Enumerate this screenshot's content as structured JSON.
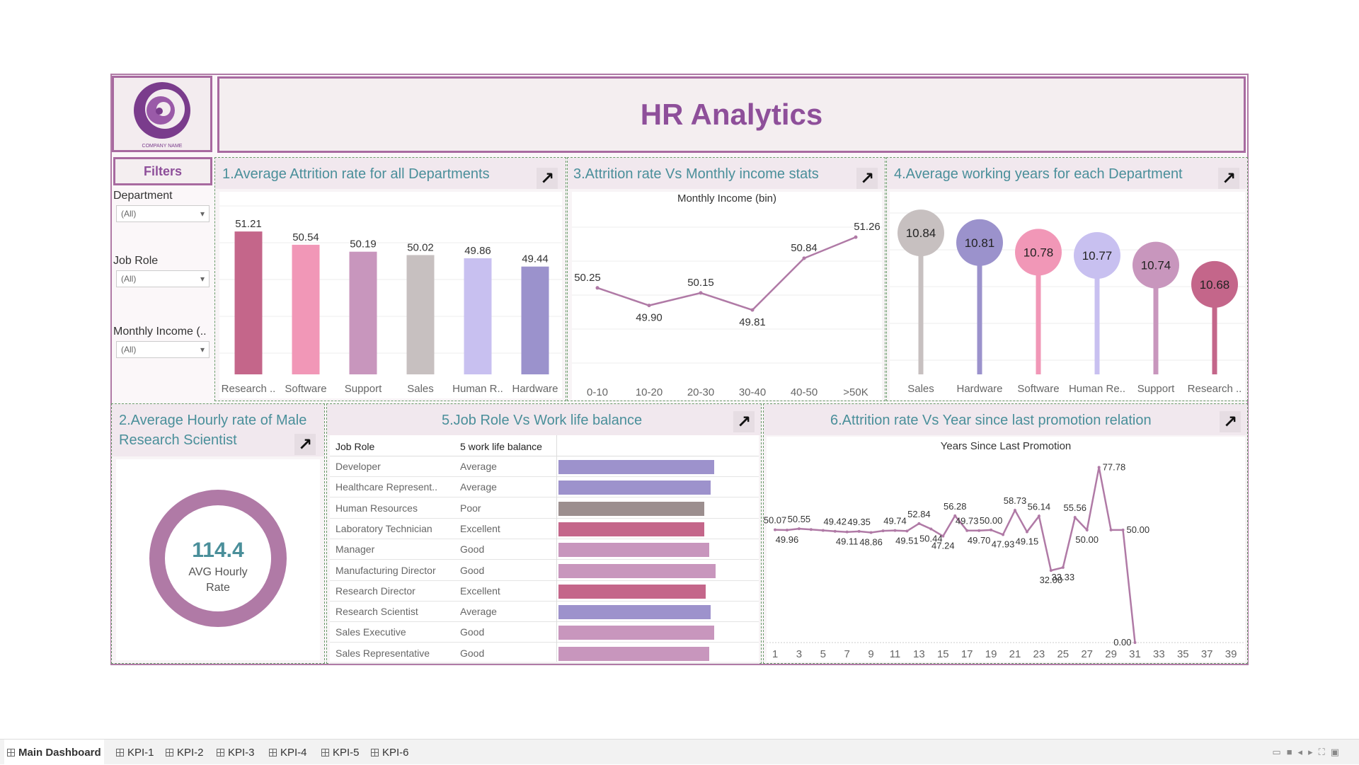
{
  "dashboard": {
    "title": "HR Analytics",
    "logo_text": "COMPANY NAME",
    "arrow_icon": "expand-arrow-icon"
  },
  "filters": {
    "title": "Filters",
    "items": [
      {
        "label": "Department",
        "value": "(All)"
      },
      {
        "label": "Job Role",
        "value": "(All)"
      },
      {
        "label": "Monthly Income (..",
        "value": "(All)"
      }
    ]
  },
  "panel1": {
    "title": "1.Average Attrition rate for all Departments",
    "chart_data": {
      "type": "bar",
      "categories": [
        "Research ..",
        "Software",
        "Support",
        "Sales",
        "Human R..",
        "Hardware"
      ],
      "values": [
        51.21,
        50.54,
        50.19,
        50.02,
        49.86,
        49.44
      ],
      "labels": [
        "51.21",
        "50.54",
        "50.19",
        "50.02",
        "49.86",
        "49.44"
      ],
      "colors": [
        "#c4668a",
        "#f197b7",
        "#c896bd",
        "#c7c0c0",
        "#c8c0f0",
        "#9b92cc"
      ],
      "ylim": [
        44,
        52
      ]
    }
  },
  "panel2": {
    "title_line1": "2.Average Hourly rate of Male",
    "title_line2": "Research Scientist",
    "value": "114.4",
    "caption_line1": "AVG Hourly",
    "caption_line2": "Rate",
    "ring_color": "#b07aa6"
  },
  "panel3": {
    "title": "3.Attrition rate Vs Monthly income stats",
    "chart_data": {
      "type": "line",
      "title": "Monthly Income (bin)",
      "categories": [
        "0-10",
        "10-20",
        "20-30",
        "30-40",
        "40-50",
        ">50K"
      ],
      "values": [
        50.25,
        49.9,
        50.15,
        49.81,
        50.84,
        51.26
      ],
      "labels": [
        "50.25",
        "49.90",
        "50.15",
        "49.81",
        "50.84",
        "51.26"
      ],
      "ylim": [
        48.5,
        51.6
      ],
      "color": "#b07aa6"
    }
  },
  "panel4": {
    "title": "4.Average working years for each Department",
    "chart_data": {
      "type": "lollipop",
      "categories": [
        "Sales",
        "Hardware",
        "Software",
        "Human Re..",
        "Support",
        "Research .."
      ],
      "values": [
        10.84,
        10.81,
        10.78,
        10.77,
        10.74,
        10.68
      ],
      "labels": [
        "10.84",
        "10.81",
        "10.78",
        "10.77",
        "10.74",
        "10.68"
      ],
      "colors": [
        "#c7c0c0",
        "#9b92cc",
        "#f197b7",
        "#c8c0f0",
        "#c896bd",
        "#c4668a"
      ],
      "ylim": [
        10.4,
        10.88
      ]
    }
  },
  "panel5": {
    "title": "5.Job Role Vs Work life balance",
    "col1": "Job Role",
    "col2": "5 work life balance",
    "rows": [
      {
        "role": "Developer",
        "balance": "Average",
        "value": 0.94,
        "color": "#9d92cc"
      },
      {
        "role": "Healthcare Represent..",
        "balance": "Average",
        "value": 0.92,
        "color": "#9d92cc"
      },
      {
        "role": "Human Resources",
        "balance": "Poor",
        "value": 0.88,
        "color": "#9c8f8f"
      },
      {
        "role": "Laboratory Technician",
        "balance": "Excellent",
        "value": 0.88,
        "color": "#c4668a"
      },
      {
        "role": "Manager",
        "balance": "Good",
        "value": 0.91,
        "color": "#c896bd"
      },
      {
        "role": "Manufacturing Director",
        "balance": "Good",
        "value": 0.95,
        "color": "#c896bd"
      },
      {
        "role": "Research Director",
        "balance": "Excellent",
        "value": 0.89,
        "color": "#c4668a"
      },
      {
        "role": "Research Scientist",
        "balance": "Average",
        "value": 0.92,
        "color": "#9d92cc"
      },
      {
        "role": "Sales Executive",
        "balance": "Good",
        "value": 0.94,
        "color": "#c896bd"
      },
      {
        "role": "Sales Representative",
        "balance": "Good",
        "value": 0.91,
        "color": "#c896bd"
      }
    ]
  },
  "panel6": {
    "title": "6.Attrition rate Vs Year since last promotion relation",
    "chart_data": {
      "type": "line",
      "title": "Years Since Last Promotion",
      "x": [
        1,
        2,
        3,
        4,
        5,
        6,
        7,
        8,
        9,
        10,
        11,
        12,
        13,
        14,
        15,
        16,
        17,
        18,
        19,
        20,
        21,
        22,
        23,
        24,
        25,
        26,
        27,
        28,
        29,
        30,
        31,
        32,
        33,
        34,
        35,
        36,
        37,
        38,
        39,
        40
      ],
      "values": [
        50.07,
        49.96,
        50.55,
        50.2,
        49.8,
        49.42,
        49.11,
        49.35,
        48.86,
        49.6,
        49.74,
        49.51,
        52.84,
        50.44,
        47.24,
        56.28,
        49.73,
        49.7,
        50.0,
        47.93,
        58.73,
        49.15,
        56.14,
        32.0,
        33.33,
        55.56,
        50.0,
        77.78,
        50.0,
        50.0,
        0.0,
        0,
        0,
        0,
        0,
        0,
        0,
        0,
        0,
        0
      ],
      "labels": [
        {
          "i": 0,
          "t": "50.07",
          "pos": "above"
        },
        {
          "i": 1,
          "t": "49.96",
          "pos": "below"
        },
        {
          "i": 2,
          "t": "50.55",
          "pos": "above"
        },
        {
          "i": 5,
          "t": "49.42",
          "pos": "above"
        },
        {
          "i": 6,
          "t": "49.11",
          "pos": "below"
        },
        {
          "i": 7,
          "t": "49.35",
          "pos": "above"
        },
        {
          "i": 8,
          "t": "48.86",
          "pos": "below"
        },
        {
          "i": 10,
          "t": "49.74",
          "pos": "above"
        },
        {
          "i": 11,
          "t": "49.51",
          "pos": "below"
        },
        {
          "i": 12,
          "t": "52.84",
          "pos": "above"
        },
        {
          "i": 13,
          "t": "50.44",
          "pos": "below"
        },
        {
          "i": 14,
          "t": "47.24",
          "pos": "below"
        },
        {
          "i": 15,
          "t": "56.28",
          "pos": "above"
        },
        {
          "i": 16,
          "t": "49.73",
          "pos": "above"
        },
        {
          "i": 17,
          "t": "49.70",
          "pos": "below"
        },
        {
          "i": 18,
          "t": "50.00",
          "pos": "above"
        },
        {
          "i": 19,
          "t": "47.93",
          "pos": "below"
        },
        {
          "i": 20,
          "t": "58.73",
          "pos": "above"
        },
        {
          "i": 21,
          "t": "49.15",
          "pos": "below"
        },
        {
          "i": 22,
          "t": "56.14",
          "pos": "above"
        },
        {
          "i": 23,
          "t": "32.00",
          "pos": "below"
        },
        {
          "i": 24,
          "t": "33.33",
          "pos": "below"
        },
        {
          "i": 25,
          "t": "55.56",
          "pos": "above"
        },
        {
          "i": 26,
          "t": "50.00",
          "pos": "below"
        },
        {
          "i": 27,
          "t": "77.78",
          "pos": "right"
        },
        {
          "i": 29,
          "t": "50.00",
          "pos": "right"
        },
        {
          "i": 30,
          "t": "0.00",
          "pos": "left"
        }
      ],
      "tick_labels": [
        "1",
        "3",
        "5",
        "7",
        "9",
        "11",
        "13",
        "15",
        "17",
        "19",
        "21",
        "23",
        "25",
        "27",
        "29",
        "31",
        "33",
        "35",
        "37",
        "39"
      ],
      "ylim": [
        0,
        82
      ],
      "color": "#b07aa6"
    }
  },
  "tabs": [
    "Main Dashboard",
    "KPI-1",
    "KPI-2",
    "KPI-3",
    "KPI-4",
    "KPI-5",
    "KPI-6"
  ]
}
